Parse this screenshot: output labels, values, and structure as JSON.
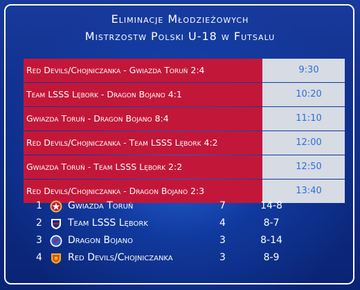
{
  "header": {
    "line1": "Eliminacje Młodzieżowych",
    "line2": "Mistrzostw Polski U-18 w Futsalu"
  },
  "matches": [
    {
      "label": "Red Devils/Chojniczanka - Gwiazda Toruń 2:4",
      "time": "9:30"
    },
    {
      "label": "Team LSSS Lębork - Dragon Bojano 4:1",
      "time": "10:20"
    },
    {
      "label": "Gwiazda Toruń - Dragon Bojano 8:4",
      "time": "11:10"
    },
    {
      "label": "Red Devils/Chojniczanka - Team LSSS Lębork 4:2",
      "time": "12:00"
    },
    {
      "label": "Gwiazda Toruń - Team LSSS Lębork 2:2",
      "time": "12:50"
    },
    {
      "label": "Red Devils/Chojniczanka - Dragon Bojano 2:3",
      "time": "13:40"
    }
  ],
  "standings": [
    {
      "pos": "1",
      "team": "Gwiazda Toruń",
      "pts": "7",
      "goals": "14-8",
      "crest": "gwiazda-torun-crest-icon"
    },
    {
      "pos": "2",
      "team": "Team LSSS Lębork",
      "pts": "4",
      "goals": "8-7",
      "crest": "lsss-lebork-crest-icon"
    },
    {
      "pos": "3",
      "team": "Dragon Bojano",
      "pts": "3",
      "goals": "8-14",
      "crest": "dragon-bojano-crest-icon"
    },
    {
      "pos": "4",
      "team": "Red Devils/Chojniczanka",
      "pts": "3",
      "goals": "8-9",
      "crest": "red-devils-crest-icon"
    }
  ],
  "colors": {
    "background": "#0f2f8a",
    "match_bar": "#c3173a",
    "time_panel": "#d6dbe4",
    "time_text": "#2d6fd6",
    "text": "#ffffff"
  }
}
